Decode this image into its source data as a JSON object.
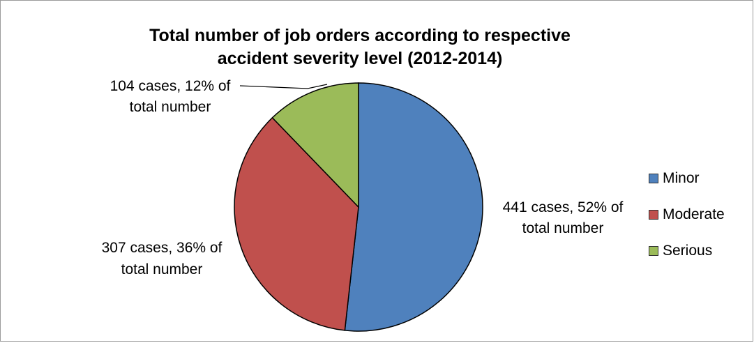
{
  "chart_data": {
    "type": "pie",
    "title_lines": [
      "Total number of job orders according to respective",
      "accident severity level (2012-2014)"
    ],
    "slices": [
      {
        "name": "Minor",
        "value": 441,
        "percent": 52,
        "color": "#4F81BD",
        "label_lines": [
          "441 cases, 52% of",
          "total number"
        ]
      },
      {
        "name": "Moderate",
        "value": 307,
        "percent": 36,
        "color": "#C0504D",
        "label_lines": [
          "307 cases, 36% of",
          "total number"
        ]
      },
      {
        "name": "Serious",
        "value": 104,
        "percent": 12,
        "color": "#9BBB59",
        "label_lines": [
          "104 cases, 12% of",
          "total number"
        ]
      }
    ],
    "legend_position": "right",
    "start_angle": "12 o'clock, clockwise"
  }
}
